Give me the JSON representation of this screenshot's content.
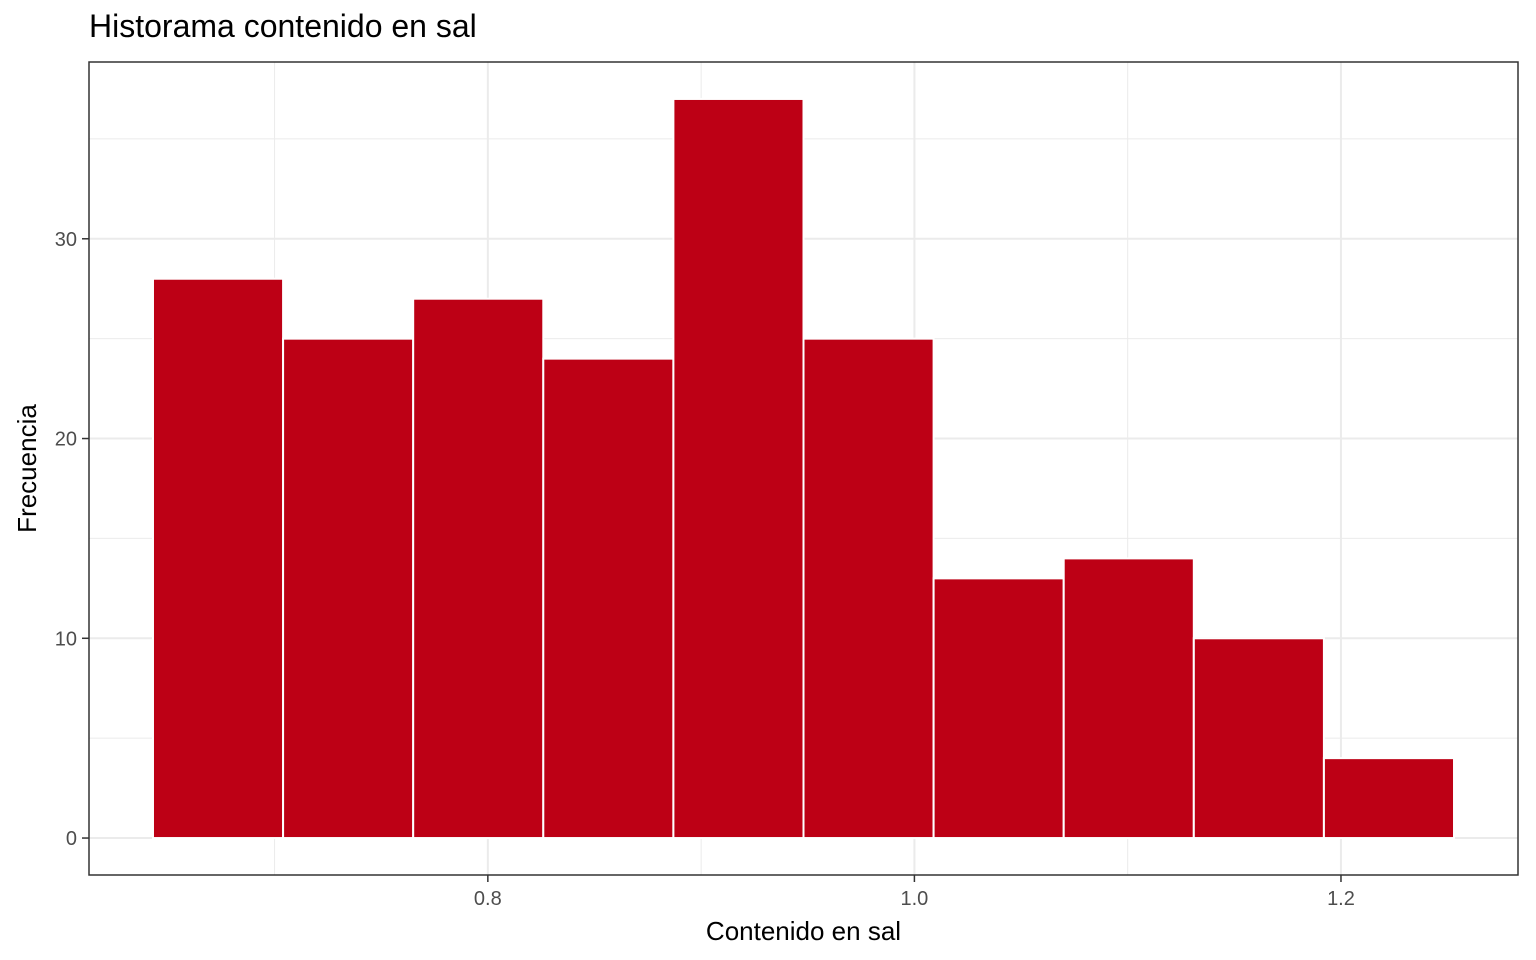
{
  "chart_data": {
    "type": "bar",
    "title": "Historama contenido en sal",
    "xlabel": "Contenido en sal",
    "ylabel": "Frecuencia",
    "bins": [
      {
        "x0": 0.643,
        "x1": 0.704,
        "count": 28
      },
      {
        "x0": 0.704,
        "x1": 0.765,
        "count": 25
      },
      {
        "x0": 0.765,
        "x1": 0.826,
        "count": 27
      },
      {
        "x0": 0.826,
        "x1": 0.887,
        "count": 24
      },
      {
        "x0": 0.887,
        "x1": 0.948,
        "count": 37
      },
      {
        "x0": 0.948,
        "x1": 1.009,
        "count": 25
      },
      {
        "x0": 1.009,
        "x1": 1.07,
        "count": 13
      },
      {
        "x0": 1.07,
        "x1": 1.131,
        "count": 14
      },
      {
        "x0": 1.131,
        "x1": 1.192,
        "count": 10
      },
      {
        "x0": 1.192,
        "x1": 1.253,
        "count": 4
      }
    ],
    "xlim": [
      0.613,
      1.283
    ],
    "ylim": [
      -1.85,
      38.85
    ],
    "x_ticks": [
      0.8,
      1.0,
      1.2
    ],
    "x_tick_labels": [
      "0.8",
      "1.0",
      "1.2"
    ],
    "x_minor_ticks": [
      0.7,
      0.9,
      1.1
    ],
    "y_ticks": [
      0,
      10,
      20,
      30
    ],
    "y_tick_labels": [
      "0",
      "10",
      "20",
      "30"
    ],
    "y_minor_ticks": [
      5,
      15,
      25,
      35
    ],
    "grid": true,
    "legend": "none",
    "colors": {
      "bar_fill": "#BD0015",
      "bar_outline": "#FFFFFF",
      "grid": "#EBEBEB",
      "panel_border": "#333333",
      "tick": "#333333"
    }
  }
}
